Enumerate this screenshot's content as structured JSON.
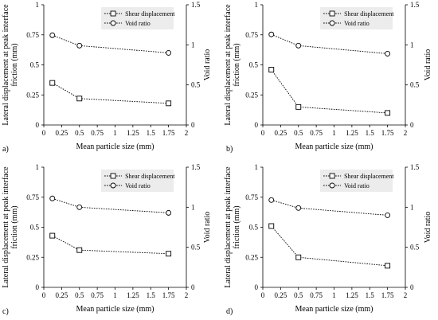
{
  "chart_data": [
    {
      "type": "line",
      "panel_label": "a)",
      "xlabel": "Mean particle size (mm)",
      "ylabel_lines": [
        "Lateral displacement at peak interface",
        "friction (mm)"
      ],
      "y2label": "Void ratio",
      "xlim": [
        0,
        2
      ],
      "ylim": [
        0,
        1
      ],
      "y2lim": [
        0,
        1.5
      ],
      "xticks": [
        "0",
        "0.25",
        "0.5",
        "0.75",
        "1",
        "1.25",
        "1.5",
        "1.75",
        "2"
      ],
      "yticks": [
        "0",
        "0.25",
        "0.5",
        "0.75",
        "1"
      ],
      "y2ticks": [
        "0",
        "0.5",
        "1",
        "1.5"
      ],
      "grid": false,
      "legend_position": "top",
      "series": [
        {
          "name": "Shear displacement",
          "axis": "left",
          "marker": "square",
          "x": [
            0.12,
            0.5,
            1.75
          ],
          "y": [
            0.35,
            0.22,
            0.18
          ]
        },
        {
          "name": "Void ratio",
          "axis": "right",
          "marker": "circle",
          "x": [
            0.12,
            0.5,
            1.75
          ],
          "y": [
            1.12,
            0.99,
            0.9
          ]
        }
      ]
    },
    {
      "type": "line",
      "panel_label": "b)",
      "xlabel": "Mean particle size (mm)",
      "ylabel_lines": [
        "Lateral displacement at peak interface",
        "friction (mm)"
      ],
      "y2label": "Void ratio",
      "xlim": [
        0,
        2
      ],
      "ylim": [
        0,
        1
      ],
      "y2lim": [
        0,
        1.5
      ],
      "xticks": [
        "0",
        "0.25",
        "0.5",
        "0.75",
        "1",
        "1.25",
        "1.5",
        "1.75",
        "2"
      ],
      "yticks": [
        "0",
        "0.25",
        "0.5",
        "0.75",
        "1"
      ],
      "y2ticks": [
        "0",
        "0.5",
        "1",
        "1.5"
      ],
      "grid": false,
      "legend_position": "top",
      "series": [
        {
          "name": "Shear displacement",
          "axis": "left",
          "marker": "square",
          "x": [
            0.12,
            0.5,
            1.75
          ],
          "y": [
            0.46,
            0.15,
            0.1
          ]
        },
        {
          "name": "Void ratio",
          "axis": "right",
          "marker": "circle",
          "x": [
            0.12,
            0.5,
            1.75
          ],
          "y": [
            1.13,
            0.99,
            0.89
          ]
        }
      ]
    },
    {
      "type": "line",
      "panel_label": "c)",
      "xlabel": "Mean particle size (mm)",
      "ylabel_lines": [
        "Lateral displacement at peak interface",
        "friction (mm)"
      ],
      "y2label": "Void ratio",
      "xlim": [
        0,
        2
      ],
      "ylim": [
        0,
        1
      ],
      "y2lim": [
        0,
        1.5
      ],
      "xticks": [
        "0",
        "0.25",
        "0.5",
        "0.75",
        "1",
        "1.25",
        "1.5",
        "1.75",
        "2"
      ],
      "yticks": [
        "0",
        "0.25",
        "0.5",
        "0.75",
        "1"
      ],
      "y2ticks": [
        "0",
        "0.5",
        "1",
        "1.5"
      ],
      "grid": false,
      "legend_position": "top",
      "series": [
        {
          "name": "Shear displacement",
          "axis": "left",
          "marker": "square",
          "x": [
            0.12,
            0.5,
            1.75
          ],
          "y": [
            0.43,
            0.31,
            0.28
          ]
        },
        {
          "name": "Void ratio",
          "axis": "right",
          "marker": "circle",
          "x": [
            0.12,
            0.5,
            1.75
          ],
          "y": [
            1.11,
            1.0,
            0.93
          ]
        }
      ]
    },
    {
      "type": "line",
      "panel_label": "d)",
      "xlabel": "Mean particle size (mm)",
      "ylabel_lines": [
        "Lateral displacement at peak interface",
        "friction (mm)"
      ],
      "y2label": "Void ratio",
      "xlim": [
        0,
        2
      ],
      "ylim": [
        0,
        1
      ],
      "y2lim": [
        0,
        1.5
      ],
      "xticks": [
        "0",
        "0.25",
        "0.5",
        "0.75",
        "1",
        "1.25",
        "1.5",
        "1.75",
        "2"
      ],
      "yticks": [
        "0",
        "0.25",
        "0.5",
        "0.75",
        "1"
      ],
      "y2ticks": [
        "0",
        "0.5",
        "1",
        "1.5"
      ],
      "grid": false,
      "legend_position": "top",
      "series": [
        {
          "name": "Shear displacement",
          "axis": "left",
          "marker": "square",
          "x": [
            0.12,
            0.5,
            1.75
          ],
          "y": [
            0.51,
            0.25,
            0.18
          ]
        },
        {
          "name": "Void ratio",
          "axis": "right",
          "marker": "circle",
          "x": [
            0.12,
            0.5,
            1.75
          ],
          "y": [
            1.09,
            0.99,
            0.9
          ]
        }
      ]
    }
  ]
}
